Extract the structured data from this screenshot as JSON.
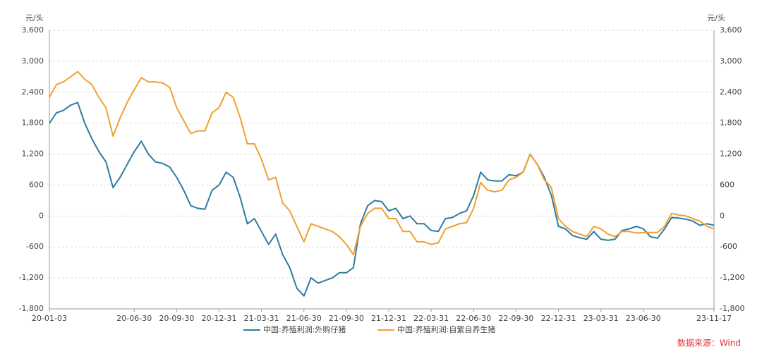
{
  "chart_data": {
    "type": "line",
    "y_label": "元/头",
    "y2_label": "元/头",
    "source": "数据来源：Wind",
    "categories": [
      "20-01-03",
      null,
      null,
      null,
      null,
      null,
      null,
      null,
      null,
      null,
      null,
      null,
      "20-06-30",
      null,
      null,
      null,
      null,
      null,
      "20-09-30",
      null,
      null,
      null,
      null,
      null,
      "20-12-31",
      null,
      null,
      null,
      null,
      null,
      "21-03-31",
      null,
      null,
      null,
      null,
      null,
      "21-06-30",
      null,
      null,
      null,
      null,
      null,
      "21-09-30",
      null,
      null,
      null,
      null,
      null,
      "21-12-31",
      null,
      null,
      null,
      null,
      null,
      "22-03-31",
      null,
      null,
      null,
      null,
      null,
      "22-06-30",
      null,
      null,
      null,
      null,
      null,
      "22-09-30",
      null,
      null,
      null,
      null,
      null,
      "22-12-31",
      null,
      null,
      null,
      null,
      null,
      "23-03-31",
      null,
      null,
      null,
      null,
      null,
      "23-06-30",
      null,
      null,
      null,
      null,
      null,
      null,
      null,
      null,
      null,
      "23-11-17"
    ],
    "series": [
      {
        "name": "中国:养殖利润:外购仔猪",
        "color": "#2e7ca1",
        "values": [
          1800,
          2000,
          2050,
          2150,
          2200,
          1800,
          1500,
          1250,
          1050,
          550,
          750,
          1000,
          1250,
          1450,
          1200,
          1050,
          1020,
          950,
          750,
          500,
          200,
          150,
          130,
          500,
          600,
          850,
          750,
          350,
          -150,
          -50,
          -300,
          -550,
          -350,
          -750,
          -1000,
          -1400,
          -1550,
          -1200,
          -1300,
          -1250,
          -1200,
          -1100,
          -1100,
          -1000,
          -150,
          200,
          300,
          280,
          100,
          150,
          -50,
          0,
          -150,
          -150,
          -280,
          -300,
          -50,
          -30,
          50,
          100,
          400,
          850,
          700,
          680,
          680,
          800,
          780,
          850,
          1200,
          1000,
          750,
          400,
          -200,
          -250,
          -380,
          -420,
          -450,
          -300,
          -450,
          -470,
          -450,
          -280,
          -250,
          -200,
          -250,
          -400,
          -430,
          -250,
          -30,
          -40,
          -60,
          -100,
          -180,
          -150,
          -180
        ]
      },
      {
        "name": "中国:养殖利润:自繁自养生猪",
        "color": "#f0a030",
        "axis": "y2",
        "values": [
          2300,
          2550,
          2600,
          2700,
          2800,
          2650,
          2550,
          2300,
          2100,
          1550,
          1900,
          2200,
          2450,
          2680,
          2600,
          2600,
          2580,
          2500,
          2100,
          1850,
          1600,
          1650,
          1650,
          2000,
          2100,
          2400,
          2300,
          1900,
          1400,
          1400,
          1100,
          700,
          750,
          250,
          100,
          -200,
          -500,
          -150,
          -200,
          -250,
          -300,
          -400,
          -550,
          -750,
          -200,
          50,
          150,
          150,
          -50,
          -50,
          -300,
          -300,
          -500,
          -500,
          -550,
          -520,
          -250,
          -200,
          -150,
          -130,
          150,
          650,
          500,
          470,
          500,
          700,
          750,
          850,
          1200,
          1000,
          700,
          550,
          -50,
          -200,
          -300,
          -350,
          -400,
          -200,
          -250,
          -350,
          -400,
          -300,
          -300,
          -330,
          -320,
          -320,
          -320,
          -200,
          50,
          20,
          0,
          -50,
          -100,
          -200,
          -250
        ]
      }
    ],
    "ylim": [
      -1800,
      3600
    ],
    "yticks": [
      {
        "value": -1800,
        "label": "-1,800"
      },
      {
        "value": -1200,
        "label": "-1,200"
      },
      -600,
      0,
      600,
      {
        "value": 1200,
        "label": "1,200"
      },
      {
        "value": 1800,
        "label": "1,800"
      },
      {
        "value": 2400,
        "label": "2,400"
      },
      {
        "value": 3000,
        "label": "3,000"
      },
      {
        "value": 3600,
        "label": "3,600"
      }
    ],
    "y2lim": [
      -1800,
      3600
    ],
    "y2ticks": [
      {
        "value": -1800,
        "label": "-1,800"
      },
      {
        "value": -1200,
        "label": "-1,200"
      },
      -600,
      0,
      600,
      {
        "value": 1200,
        "label": "1,200"
      },
      {
        "value": 1800,
        "label": "1,800"
      },
      {
        "value": 2400,
        "label": "2,400"
      },
      {
        "value": 3000,
        "label": "3,000"
      },
      {
        "value": 3600,
        "label": "3,600"
      }
    ],
    "grid": true
  }
}
